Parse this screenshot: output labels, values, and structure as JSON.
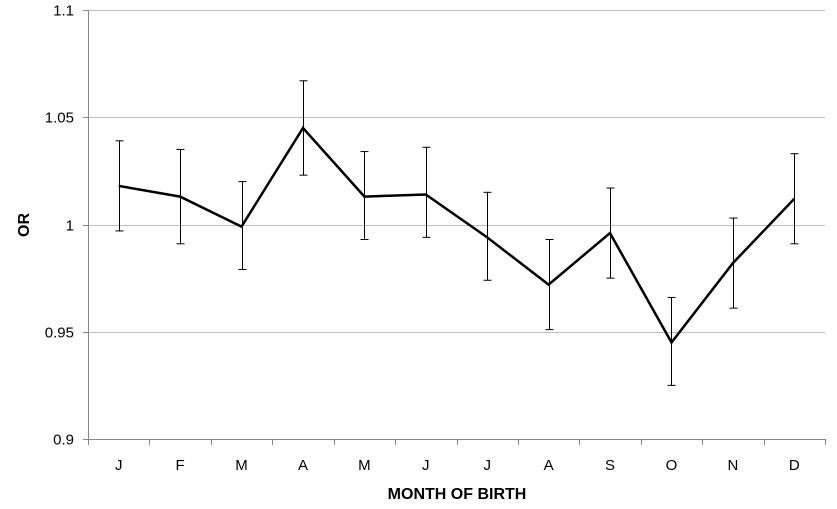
{
  "chart_data": {
    "type": "line",
    "title": "",
    "xlabel": "MONTH OF BIRTH",
    "ylabel": "OR",
    "categories": [
      "J",
      "F",
      "M",
      "A",
      "M",
      "J",
      "J",
      "A",
      "S",
      "O",
      "N",
      "D"
    ],
    "series": [
      {
        "values": [
          1.018,
          1.013,
          0.999,
          1.045,
          1.013,
          1.014,
          0.994,
          0.972,
          0.996,
          0.945,
          0.982,
          1.012
        ],
        "error_low": [
          0.997,
          0.991,
          0.979,
          1.023,
          0.993,
          0.994,
          0.974,
          0.951,
          0.975,
          0.925,
          0.961,
          0.991
        ],
        "error_high": [
          1.039,
          1.035,
          1.02,
          1.067,
          1.034,
          1.036,
          1.015,
          0.993,
          1.017,
          0.966,
          1.003,
          1.033
        ]
      }
    ],
    "ylim": [
      0.9,
      1.1
    ],
    "yticks": [
      "0.9",
      "0.95",
      "1",
      "1.05",
      "1.1"
    ],
    "grid": true,
    "legend": "none",
    "colors": {
      "line": "#000000",
      "grid": "#bfbfbf",
      "axis": "#868686"
    }
  }
}
